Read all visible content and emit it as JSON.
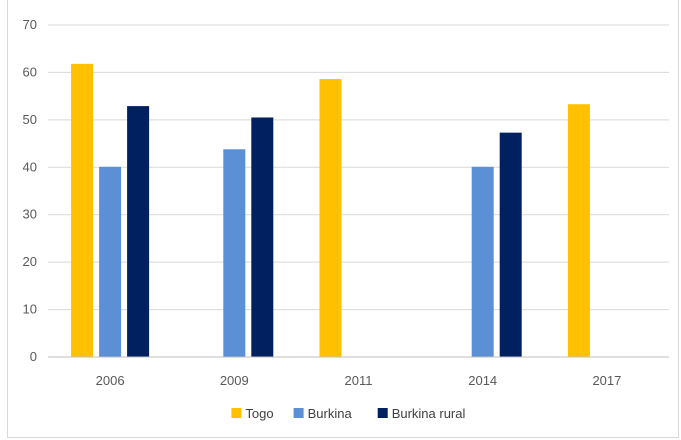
{
  "chart_data": {
    "type": "bar",
    "title": "",
    "xlabel": "",
    "ylabel": "",
    "categories": [
      "2006",
      "2009",
      "2011",
      "2014",
      "2017"
    ],
    "series": [
      {
        "name": "Togo",
        "color": "#FFC000",
        "values": [
          61.8,
          null,
          58.6,
          null,
          53.3
        ]
      },
      {
        "name": "Burkina",
        "color": "#5B8FD6",
        "values": [
          40.1,
          43.8,
          null,
          40.1,
          null
        ]
      },
      {
        "name": "Burkina rural",
        "color": "#002060",
        "values": [
          52.9,
          50.5,
          null,
          47.3,
          null
        ]
      }
    ],
    "ylim": [
      0,
      70
    ],
    "yticks": [
      0,
      10,
      20,
      30,
      40,
      50,
      60,
      70
    ],
    "grid": true,
    "legend_position": "bottom"
  }
}
